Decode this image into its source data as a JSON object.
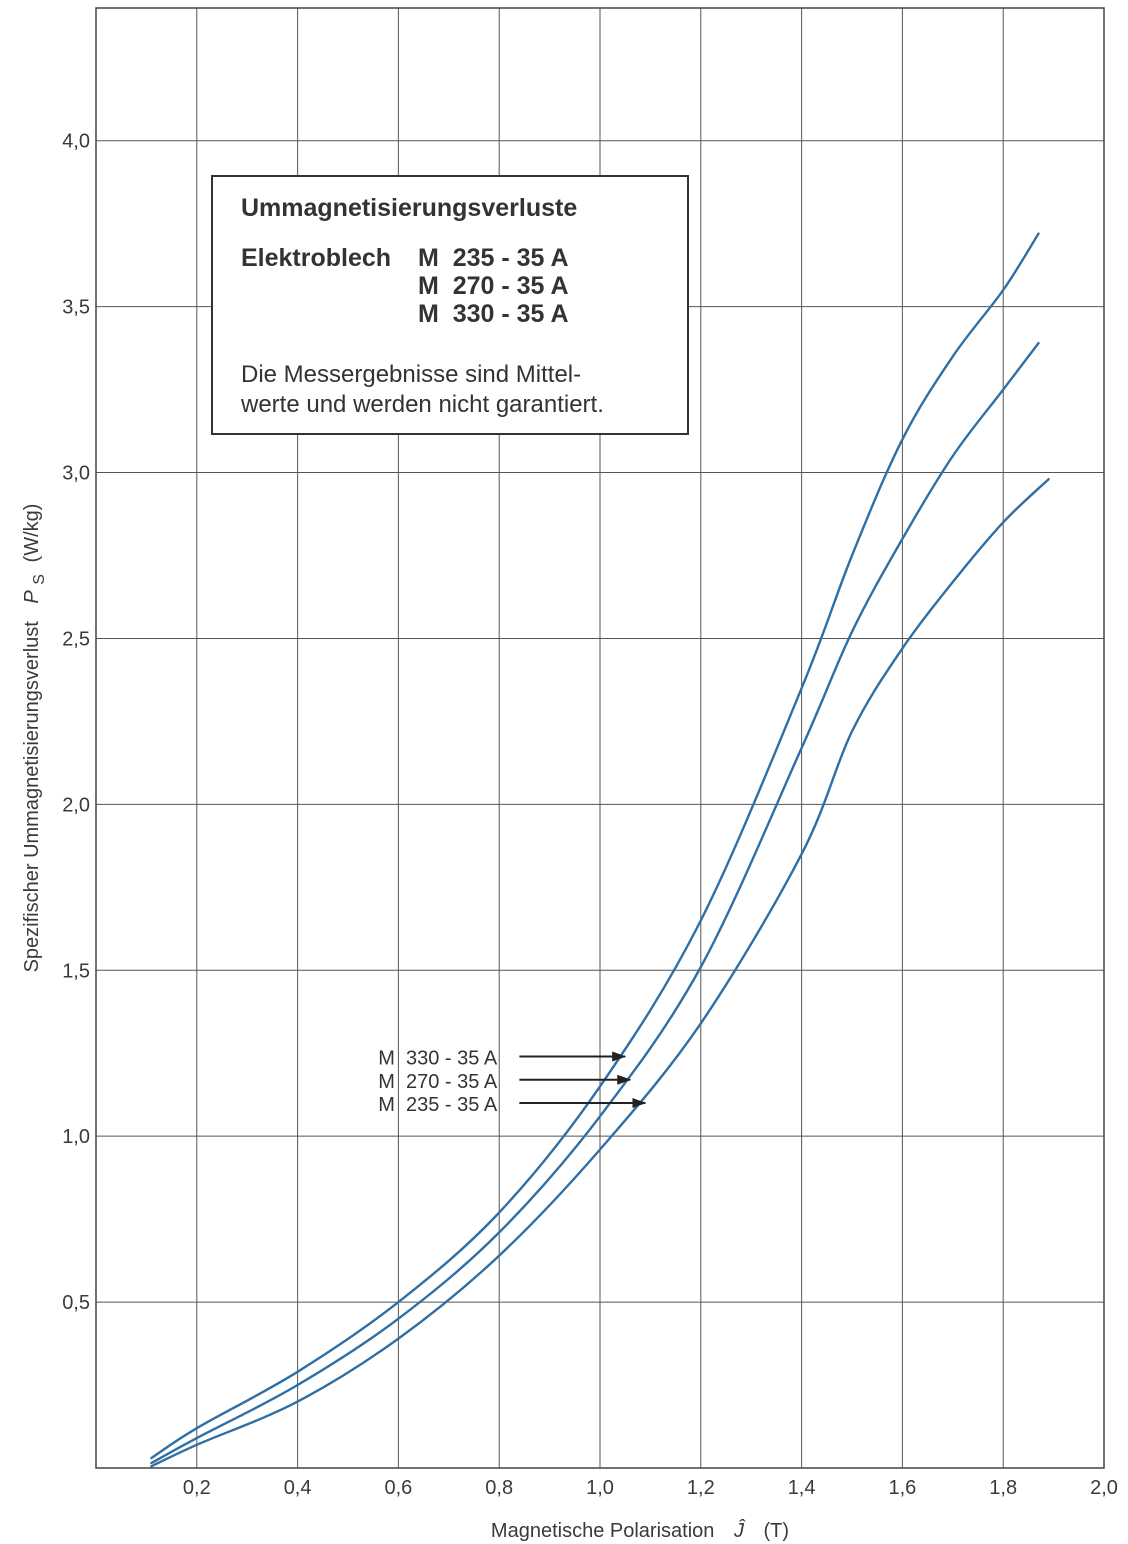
{
  "chart_data": {
    "type": "line",
    "title": "",
    "xlabel": "Magnetische Polarisation",
    "xlabel_symbol": "Ĵ",
    "xlabel_unit": "(T)",
    "ylabel": "Spezifischer Ummagnetisierungsverlust",
    "ylabel_symbol": "P",
    "ylabel_subscript": "S",
    "ylabel_unit": "(W/kg)",
    "xlim": [
      0.0,
      2.0
    ],
    "ylim": [
      0.0,
      4.0
    ],
    "grid": true,
    "x_ticks": [
      0.2,
      0.4,
      0.6,
      0.8,
      1.0,
      1.2,
      1.4,
      1.6,
      1.8,
      2.0
    ],
    "x_tick_labels": [
      "0,2",
      "0,4",
      "0,6",
      "0,8",
      "1,0",
      "1,2",
      "1,4",
      "1,6",
      "1,8",
      "2,0"
    ],
    "y_ticks": [
      0.5,
      1.0,
      1.5,
      2.0,
      2.5,
      3.0,
      3.5,
      4.0
    ],
    "y_tick_labels": [
      "0,5",
      "1,0",
      "1,5",
      "2,0",
      "2,5",
      "3,0",
      "3,5",
      "4,0"
    ],
    "series": [
      {
        "name": "M 330 - 35 A",
        "color": "#2e6fa6",
        "points": [
          [
            0.11,
            0.03
          ],
          [
            0.2,
            0.12
          ],
          [
            0.4,
            0.29
          ],
          [
            0.6,
            0.5
          ],
          [
            0.8,
            0.77
          ],
          [
            1.0,
            1.15
          ],
          [
            1.2,
            1.65
          ],
          [
            1.4,
            2.35
          ],
          [
            1.5,
            2.75
          ],
          [
            1.6,
            3.1
          ],
          [
            1.7,
            3.35
          ],
          [
            1.8,
            3.55
          ],
          [
            1.87,
            3.72
          ]
        ]
      },
      {
        "name": "M 270 - 35 A",
        "color": "#2e6fa6",
        "points": [
          [
            0.11,
            0.015
          ],
          [
            0.2,
            0.09
          ],
          [
            0.4,
            0.25
          ],
          [
            0.6,
            0.45
          ],
          [
            0.8,
            0.71
          ],
          [
            1.0,
            1.06
          ],
          [
            1.2,
            1.51
          ],
          [
            1.4,
            2.17
          ],
          [
            1.5,
            2.52
          ],
          [
            1.6,
            2.8
          ],
          [
            1.7,
            3.05
          ],
          [
            1.8,
            3.25
          ],
          [
            1.87,
            3.39
          ]
        ]
      },
      {
        "name": "M 235 - 35 A",
        "color": "#2e6fa6",
        "points": [
          [
            0.11,
            0.005
          ],
          [
            0.2,
            0.07
          ],
          [
            0.4,
            0.2
          ],
          [
            0.6,
            0.39
          ],
          [
            0.8,
            0.64
          ],
          [
            1.0,
            0.96
          ],
          [
            1.2,
            1.34
          ],
          [
            1.4,
            1.85
          ],
          [
            1.5,
            2.22
          ],
          [
            1.6,
            2.47
          ],
          [
            1.7,
            2.67
          ],
          [
            1.8,
            2.85
          ],
          [
            1.89,
            2.98
          ]
        ]
      }
    ],
    "callouts": [
      {
        "label": "M  330 - 35 A",
        "text_x": 0.56,
        "text_y": 1.24,
        "arrow_from_x": 0.84,
        "arrow_to_x": 1.05
      },
      {
        "label": "M  270 - 35 A",
        "text_x": 0.56,
        "text_y": 1.17,
        "arrow_from_x": 0.84,
        "arrow_to_x": 1.06
      },
      {
        "label": "M  235 - 35 A",
        "text_x": 0.56,
        "text_y": 1.1,
        "arrow_from_x": 0.84,
        "arrow_to_x": 1.09
      }
    ],
    "legend": {
      "placement": "top-left",
      "title": "Ummagnetisierungsverluste",
      "material_label": "Elektroblech",
      "materials": [
        "M  235 - 35 A",
        "M  270 - 35 A",
        "M  330 - 35 A"
      ],
      "note_line1": "Die Messergebnisse sind Mittel-",
      "note_line2": "werte und werden nicht garantiert."
    }
  }
}
